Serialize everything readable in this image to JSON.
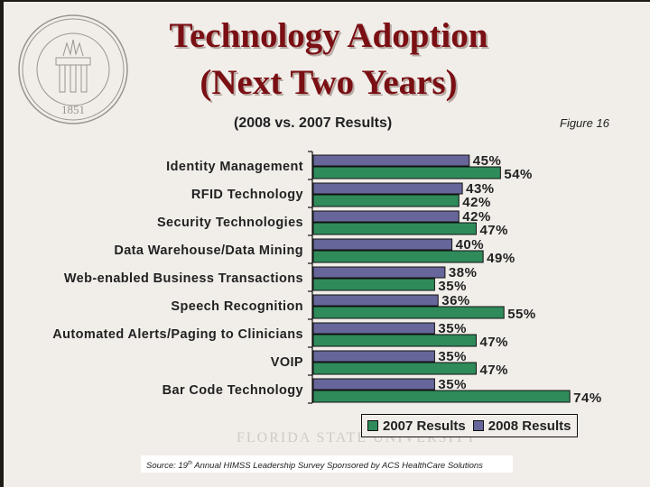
{
  "slide": {
    "title_line1": "Technology Adoption",
    "title_line2": "(Next Two Years)",
    "subtitle": "(2008 vs. 2007 Results)",
    "figure_label": "Figure 16",
    "source_prefix": "Source: 19",
    "source_sup": "th",
    "source_suffix": " Annual HIMSS Leadership Survey Sponsored by ACS HealthCare Solutions",
    "seal_icon": "university-seal-icon",
    "watermark_text": "FLORIDA STATE UNIVERSITY"
  },
  "chart_data": {
    "type": "bar",
    "orientation": "horizontal",
    "title": "Technology Adoption (Next Two Years)",
    "subtitle": "(2008 vs. 2007 Results)",
    "xlabel": "",
    "ylabel": "",
    "xlim": [
      0,
      100
    ],
    "grid": false,
    "value_format": "percent",
    "legend_position": "bottom-right",
    "categories": [
      "Identity Management",
      "RFID Technology",
      "Security Technologies",
      "Data Warehouse/Data Mining",
      "Web-enabled Business Transactions",
      "Speech Recognition",
      "Automated Alerts/Paging to Clinicians",
      "VOIP",
      "Bar Code Technology"
    ],
    "series": [
      {
        "name": "2008 Results",
        "color": "#66669a",
        "values": [
          45,
          43,
          42,
          40,
          38,
          36,
          35,
          35,
          35
        ]
      },
      {
        "name": "2007 Results",
        "color": "#2f8b5a",
        "values": [
          54,
          42,
          47,
          49,
          35,
          55,
          47,
          47,
          74
        ]
      }
    ],
    "legend": [
      {
        "name": "2007 Results",
        "color": "#2f8b5a"
      },
      {
        "name": "2008 Results",
        "color": "#66669a"
      }
    ]
  }
}
